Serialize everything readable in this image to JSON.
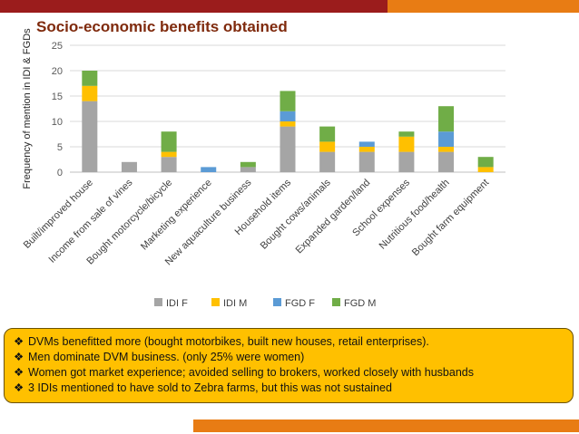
{
  "colors": {
    "top_red": "#9b1c1c",
    "top_orange": "#e87c14",
    "bottom_orange": "#e87c14",
    "notes_bg": "#ffc000",
    "title": "#7f2a0d"
  },
  "chart_data": {
    "type": "bar",
    "stacked": true,
    "title": "Socio-economic benefits obtained",
    "xlabel": "",
    "ylabel": "Frequency of mention in IDI & FGDs",
    "ylim": [
      0,
      25
    ],
    "yticks": [
      0,
      5,
      10,
      15,
      20,
      25
    ],
    "grid": true,
    "legend_position": "bottom",
    "categories": [
      "Built/improved house",
      "Income from sale of vines",
      "Bought motorcycle/bicycle",
      "Marketing experience",
      "New aquaculture business",
      "Household items",
      "Bought cows/animals",
      "Expanded garden/land",
      "School expenses",
      "Nutritious food/health",
      "Bought farm equipment"
    ],
    "series": [
      {
        "name": "IDI F",
        "color": "#a5a5a5",
        "values": [
          14,
          2,
          3,
          0,
          1,
          9,
          4,
          4,
          4,
          4,
          0
        ]
      },
      {
        "name": "IDI M",
        "color": "#ffc000",
        "values": [
          3,
          0,
          1,
          0,
          0,
          1,
          2,
          1,
          3,
          1,
          1
        ]
      },
      {
        "name": "FGD F",
        "color": "#5b9bd5",
        "values": [
          0,
          0,
          0,
          1,
          0,
          2,
          0,
          1,
          0,
          3,
          0
        ]
      },
      {
        "name": "FGD M",
        "color": "#70ad47",
        "values": [
          3,
          0,
          4,
          0,
          1,
          4,
          3,
          0,
          1,
          5,
          2
        ]
      }
    ]
  },
  "notes": {
    "bullet": "❖",
    "items": [
      "DVMs benefitted more (bought motorbikes, built new houses, retail enterprises).",
      "Men dominate DVM business. (only 25% were women)",
      "Women got market experience; avoided selling to brokers, worked closely with husbands",
      "3 IDIs mentioned to have sold to Zebra farms, but this was not sustained"
    ]
  }
}
